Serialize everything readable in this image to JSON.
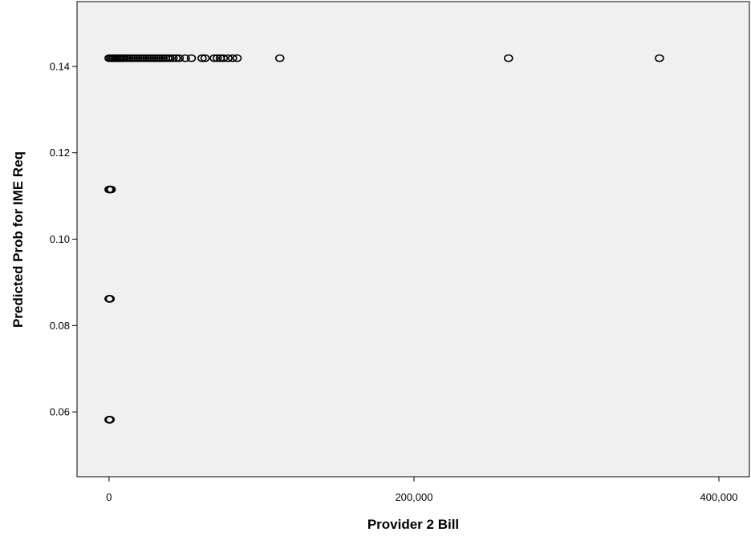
{
  "chart_data": {
    "type": "scatter",
    "title": "",
    "xlabel": "Provider 2 Bill",
    "ylabel": "Predicted Prob for IME Req",
    "xlim": [
      -21000,
      420000
    ],
    "ylim": [
      0.045,
      0.155
    ],
    "x_ticks": [
      0,
      200000,
      400000
    ],
    "x_tick_labels": [
      "0",
      "200,000",
      "400,000"
    ],
    "y_ticks": [
      0.06,
      0.08,
      0.1,
      0.12,
      0.14
    ],
    "y_tick_labels": [
      "0.06",
      "0.08",
      "0.10",
      "0.12",
      "0.14"
    ],
    "grid": false,
    "plot_background": "#f0f0f0",
    "marker": "open-circle",
    "marker_color": "#000000",
    "series": [
      {
        "points": [
          {
            "x": 0,
            "y": 0.0582
          },
          {
            "x": 300,
            "y": 0.0582
          },
          {
            "x": 700,
            "y": 0.0582
          },
          {
            "x": 0,
            "y": 0.0862
          },
          {
            "x": 300,
            "y": 0.0862
          },
          {
            "x": 700,
            "y": 0.0862
          },
          {
            "x": 0,
            "y": 0.1115
          },
          {
            "x": 400,
            "y": 0.1115
          },
          {
            "x": 900,
            "y": 0.1115
          },
          {
            "x": 1400,
            "y": 0.1115
          },
          {
            "x": 0,
            "y": 0.1419
          },
          {
            "x": 1000,
            "y": 0.1419
          },
          {
            "x": 2000,
            "y": 0.1419
          },
          {
            "x": 3000,
            "y": 0.1419
          },
          {
            "x": 4000,
            "y": 0.1419
          },
          {
            "x": 5000,
            "y": 0.1419
          },
          {
            "x": 6000,
            "y": 0.1419
          },
          {
            "x": 7000,
            "y": 0.1419
          },
          {
            "x": 8000,
            "y": 0.1419
          },
          {
            "x": 9000,
            "y": 0.1419
          },
          {
            "x": 10000,
            "y": 0.1419
          },
          {
            "x": 11500,
            "y": 0.1419
          },
          {
            "x": 13000,
            "y": 0.1419
          },
          {
            "x": 14500,
            "y": 0.1419
          },
          {
            "x": 16000,
            "y": 0.1419
          },
          {
            "x": 17500,
            "y": 0.1419
          },
          {
            "x": 19000,
            "y": 0.1419
          },
          {
            "x": 20500,
            "y": 0.1419
          },
          {
            "x": 22000,
            "y": 0.1419
          },
          {
            "x": 23500,
            "y": 0.1419
          },
          {
            "x": 25000,
            "y": 0.1419
          },
          {
            "x": 26500,
            "y": 0.1419
          },
          {
            "x": 28000,
            "y": 0.1419
          },
          {
            "x": 29500,
            "y": 0.1419
          },
          {
            "x": 31000,
            "y": 0.1419
          },
          {
            "x": 32500,
            "y": 0.1419
          },
          {
            "x": 34000,
            "y": 0.1419
          },
          {
            "x": 35500,
            "y": 0.1419
          },
          {
            "x": 37000,
            "y": 0.1419
          },
          {
            "x": 38500,
            "y": 0.1419
          },
          {
            "x": 40000,
            "y": 0.1419
          },
          {
            "x": 42000,
            "y": 0.1419
          },
          {
            "x": 44000,
            "y": 0.1419
          },
          {
            "x": 46000,
            "y": 0.1419
          },
          {
            "x": 50000,
            "y": 0.1419
          },
          {
            "x": 54000,
            "y": 0.1419
          },
          {
            "x": 61000,
            "y": 0.1419
          },
          {
            "x": 63000,
            "y": 0.1419
          },
          {
            "x": 69000,
            "y": 0.1419
          },
          {
            "x": 71000,
            "y": 0.1419
          },
          {
            "x": 73000,
            "y": 0.1419
          },
          {
            "x": 75000,
            "y": 0.1419
          },
          {
            "x": 78000,
            "y": 0.1419
          },
          {
            "x": 81000,
            "y": 0.1419
          },
          {
            "x": 84000,
            "y": 0.1419
          },
          {
            "x": 112000,
            "y": 0.1419
          },
          {
            "x": 262000,
            "y": 0.1419
          },
          {
            "x": 361000,
            "y": 0.1419
          }
        ]
      }
    ]
  }
}
